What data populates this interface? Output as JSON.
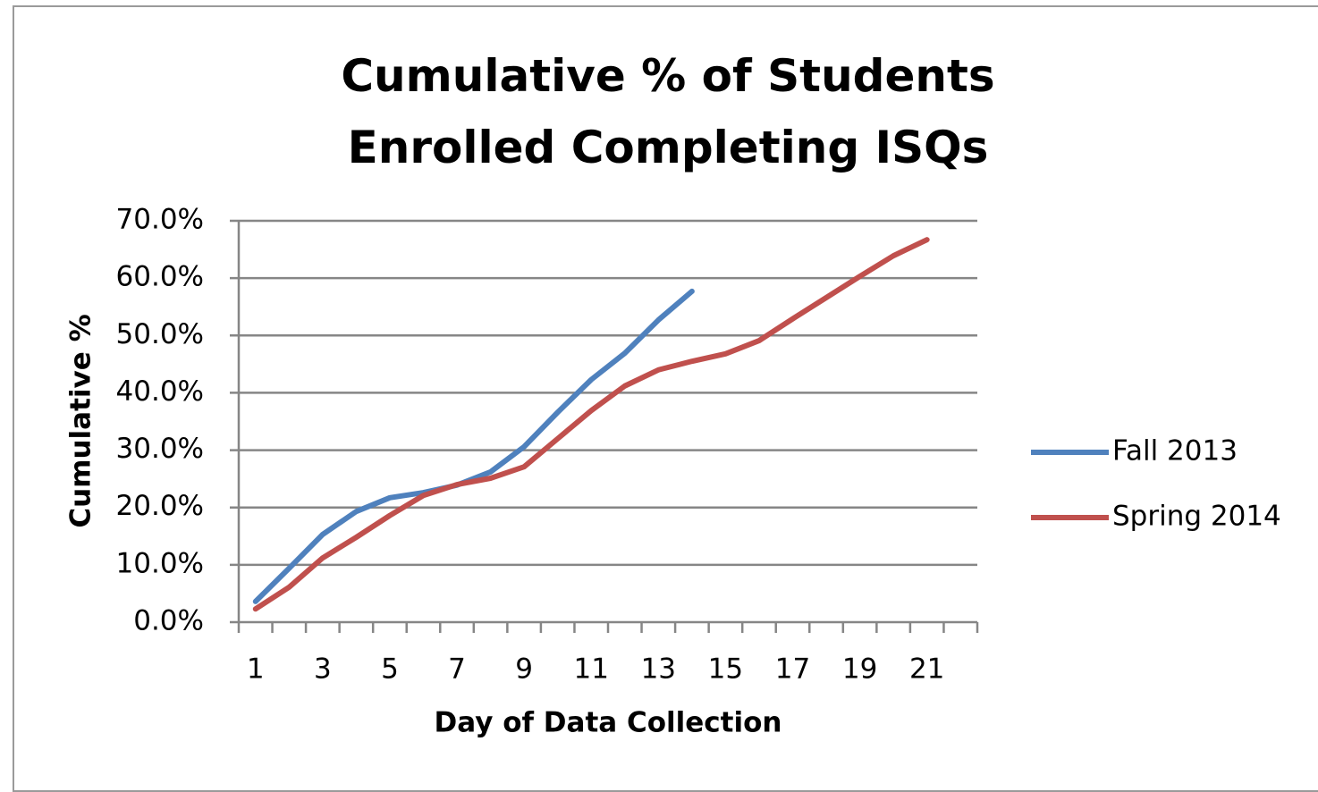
{
  "chart_data": {
    "type": "line",
    "title": "Cumulative % of Students Enrolled Completing ISQs",
    "x_label": "Day of Data Collection",
    "y_label": "Cumulative %",
    "categories": [
      "1",
      null,
      "3",
      null,
      "5",
      null,
      "7",
      null,
      "9",
      null,
      "11",
      null,
      "13",
      null,
      "15",
      null,
      "17",
      null,
      "19",
      null,
      "21",
      null
    ],
    "series": [
      {
        "name": "Fall 2013",
        "color": "#4f81bd",
        "values": [
          3.6,
          9.4,
          15.3,
          19.3,
          21.7,
          22.6,
          23.9,
          26.2,
          30.6,
          36.6,
          42.3,
          46.9,
          52.7,
          57.7,
          null,
          null,
          null,
          null,
          null,
          null,
          null,
          null
        ]
      },
      {
        "name": "Spring 2014",
        "color": "#c0504d",
        "values": [
          2.3,
          6.1,
          11.2,
          14.8,
          18.6,
          22.1,
          24.0,
          25.1,
          27.1,
          32.0,
          36.9,
          41.2,
          44.0,
          45.5,
          46.8,
          49.1,
          52.9,
          56.6,
          60.3,
          63.9,
          66.7,
          null
        ]
      }
    ],
    "ylim": [
      0,
      70
    ],
    "yticks": [
      {
        "value": 0,
        "label": "0.0%"
      },
      {
        "value": 10,
        "label": "10.0%"
      },
      {
        "value": 20,
        "label": "20.0%"
      },
      {
        "value": 30,
        "label": "30.0%"
      },
      {
        "value": 40,
        "label": "40.0%"
      },
      {
        "value": 50,
        "label": "50.0%"
      },
      {
        "value": 60,
        "label": "60.0%"
      },
      {
        "value": 70,
        "label": "70.0%"
      }
    ],
    "grid": true,
    "legend": "right"
  }
}
